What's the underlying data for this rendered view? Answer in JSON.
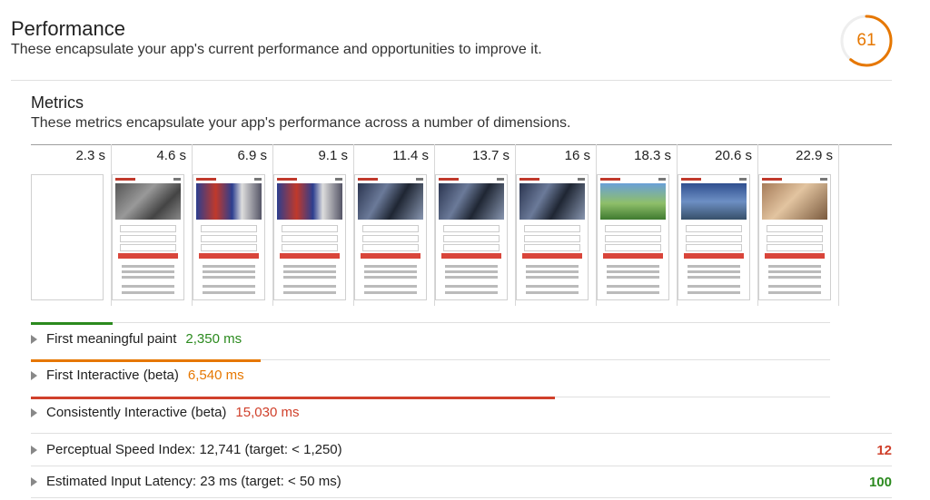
{
  "header": {
    "title": "Performance",
    "description": "These encapsulate your app's current performance and opportunities to improve it.",
    "score": "61",
    "score_fraction": 0.61,
    "score_color": "#e67700"
  },
  "metrics": {
    "title": "Metrics",
    "description": "These metrics encapsulate your app's performance across a number of dimensions."
  },
  "filmstrip": [
    {
      "time": "2.3 s",
      "state": "blank"
    },
    {
      "time": "4.6 s",
      "state": "gray"
    },
    {
      "time": "6.9 s",
      "state": "flag"
    },
    {
      "time": "9.1 s",
      "state": "flag"
    },
    {
      "time": "11.4 s",
      "state": "dark"
    },
    {
      "time": "13.7 s",
      "state": "dark"
    },
    {
      "time": "16 s",
      "state": "dark"
    },
    {
      "time": "18.3 s",
      "state": "rainbow"
    },
    {
      "time": "20.6 s",
      "state": "city"
    },
    {
      "time": "22.9 s",
      "state": "warm"
    }
  ],
  "rows": [
    {
      "label": "First meaningful paint",
      "value": "2,350 ms",
      "color": "#2b8a1e",
      "bar_fraction": 0.102
    },
    {
      "label": "First Interactive (beta)",
      "value": "6,540 ms",
      "color": "#e67700",
      "bar_fraction": 0.287
    },
    {
      "label": "Consistently Interactive (beta)",
      "value": "15,030 ms",
      "color": "#d0402b",
      "bar_fraction": 0.656
    },
    {
      "label": "Perceptual Speed Index: 12,741 (target: < 1,250)",
      "score": "12",
      "score_color": "#d0402b"
    },
    {
      "label": "Estimated Input Latency: 23 ms (target: < 50 ms)",
      "score": "100",
      "score_color": "#2b8a1e"
    }
  ]
}
